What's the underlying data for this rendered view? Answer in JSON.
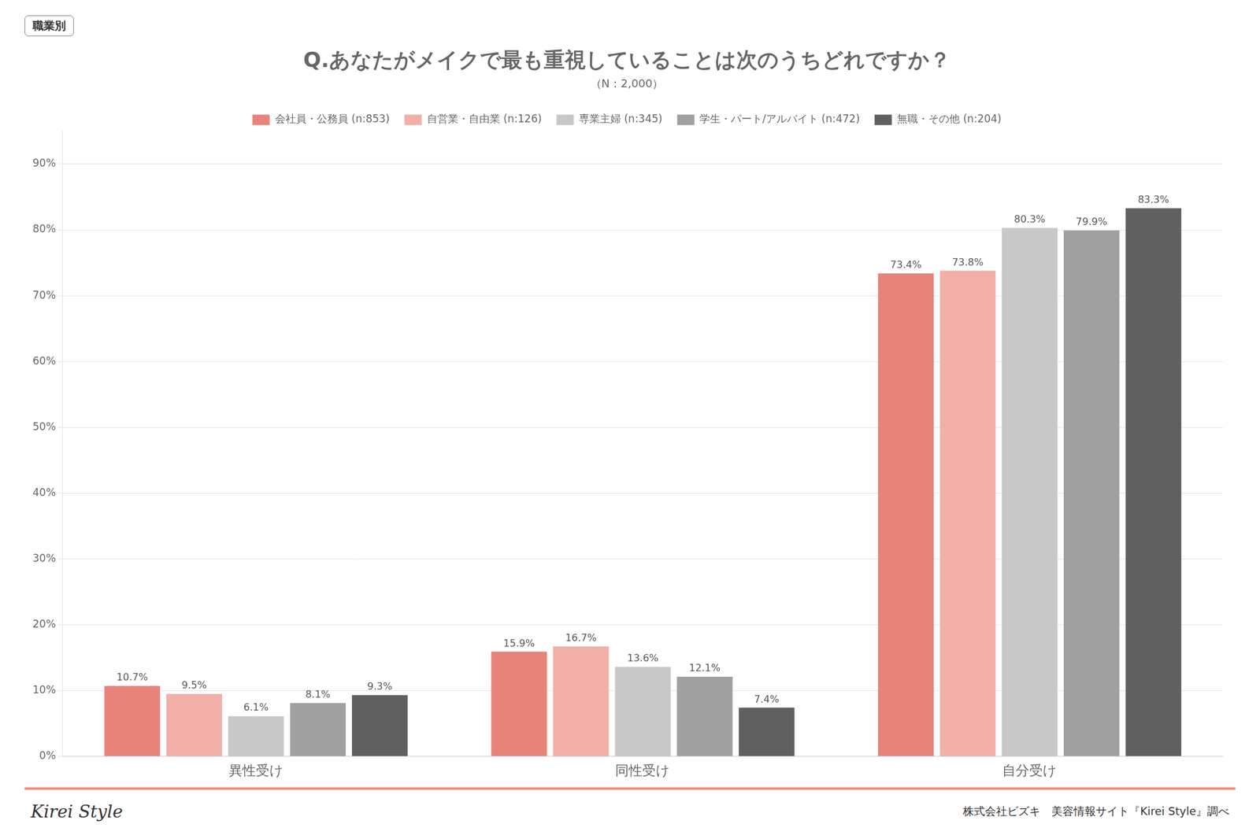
{
  "chart_data": {
    "type": "bar",
    "title": "Q.あなたがメイクで最も重視していることは次のうちどれですか？",
    "subtitle": "（N：2,000）",
    "label_box": "職業別",
    "categories": [
      "異性受け",
      "同性受け",
      "自分受け"
    ],
    "series": [
      {
        "name": "会社員・公務員",
        "n": "(n:853)",
        "color": "#E8837A",
        "values": [
          10.7,
          15.9,
          73.4
        ],
        "value_labels": [
          "10.7%",
          "15.9%",
          "73.4%"
        ]
      },
      {
        "name": "自営業・自由業",
        "n": "(n:126)",
        "color": "#F2AFA8",
        "values": [
          9.5,
          16.7,
          73.8
        ],
        "value_labels": [
          "9.5%",
          "16.7%",
          "73.8%"
        ]
      },
      {
        "name": "専業主婦",
        "n": "(n:345)",
        "color": "#C8C8C8",
        "values": [
          6.1,
          13.6,
          80.3
        ],
        "value_labels": [
          "6.1%",
          "13.6%",
          "80.3%"
        ]
      },
      {
        "name": "学生・パート/アルバイト",
        "n": "(n:472)",
        "color": "#A0A0A0",
        "values": [
          8.1,
          12.1,
          79.9
        ],
        "value_labels": [
          "8.1%",
          "12.1%",
          "79.9%"
        ]
      },
      {
        "name": "無職・その他",
        "n": "(n:204)",
        "color": "#606060",
        "values": [
          9.3,
          7.4,
          83.3
        ],
        "value_labels": [
          "9.3%",
          "7.4%",
          "83.3%"
        ]
      }
    ],
    "ylim": [
      0,
      95
    ],
    "yticks": [
      {
        "value": 0,
        "label": "0%"
      },
      {
        "value": 10,
        "label": "10%"
      },
      {
        "value": 20,
        "label": "20%"
      },
      {
        "value": 30,
        "label": "30%"
      },
      {
        "value": 40,
        "label": "40%"
      },
      {
        "value": 50,
        "label": "50%"
      },
      {
        "value": 60,
        "label": "60%"
      },
      {
        "value": 70,
        "label": "70%"
      },
      {
        "value": 80,
        "label": "80%"
      },
      {
        "value": 90,
        "label": "90%"
      }
    ],
    "grid": true,
    "legend": "top",
    "data_labels": true,
    "footer_left": "Kirei Style",
    "footer_right": "株式会社ビズキ　美容情報サイト『Kirei Style』調べ"
  }
}
